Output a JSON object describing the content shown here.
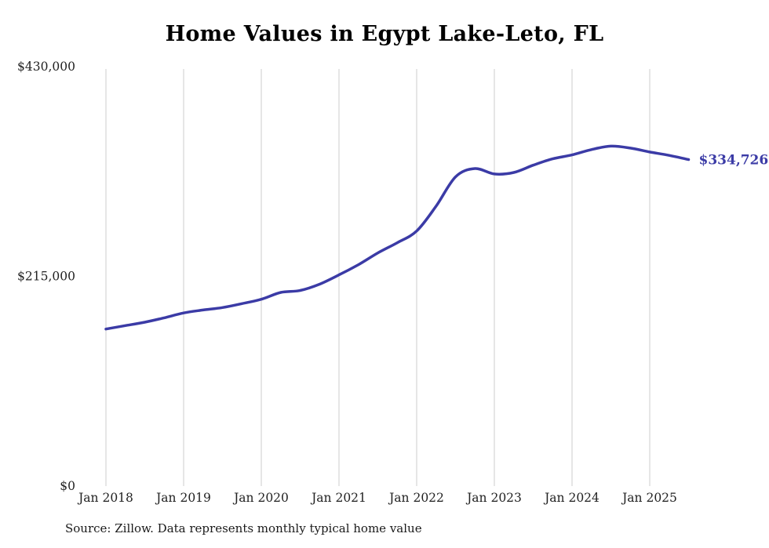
{
  "chart_data": {
    "type": "line",
    "title": "Home Values in Egypt Lake-Leto, FL",
    "source": "Source: Zillow. Data represents monthly typical home value",
    "series_name": "Monthly typical home value",
    "x": [
      "2018-01",
      "2018-04",
      "2018-07",
      "2018-10",
      "2019-01",
      "2019-04",
      "2019-07",
      "2019-10",
      "2020-01",
      "2020-04",
      "2020-07",
      "2020-10",
      "2021-01",
      "2021-04",
      "2021-07",
      "2021-10",
      "2022-01",
      "2022-04",
      "2022-07",
      "2022-10",
      "2023-01",
      "2023-04",
      "2023-07",
      "2023-10",
      "2024-01",
      "2024-04",
      "2024-07",
      "2024-10",
      "2025-01",
      "2025-04",
      "2025-07"
    ],
    "values": [
      161000,
      164500,
      168000,
      172500,
      177500,
      180500,
      183000,
      187000,
      191500,
      198500,
      200500,
      207000,
      216500,
      227000,
      239000,
      249500,
      261500,
      287000,
      317000,
      325500,
      320000,
      321500,
      329000,
      335500,
      339500,
      345000,
      348500,
      346500,
      342500,
      339000,
      334726
    ],
    "end_label": "$334,726",
    "ylim": [
      0,
      430000
    ],
    "y_ticks": [
      {
        "value": 0,
        "label": "$0"
      },
      {
        "value": 215000,
        "label": "$215,000"
      },
      {
        "value": 430000,
        "label": "$430,000"
      }
    ],
    "x_ticks": [
      {
        "x": "2018-01",
        "label": "Jan 2018"
      },
      {
        "x": "2019-01",
        "label": "Jan 2019"
      },
      {
        "x": "2020-01",
        "label": "Jan 2020"
      },
      {
        "x": "2021-01",
        "label": "Jan 2021"
      },
      {
        "x": "2022-01",
        "label": "Jan 2022"
      },
      {
        "x": "2023-01",
        "label": "Jan 2023"
      },
      {
        "x": "2024-01",
        "label": "Jan 2024"
      },
      {
        "x": "2025-01",
        "label": "Jan 2025"
      }
    ],
    "grid": "vertical",
    "legend": "none",
    "colors": {
      "line": "#3b3ba6",
      "grid": "#cccccc",
      "axis_text": "#222222",
      "title": "#000000",
      "background": "#ffffff"
    }
  }
}
